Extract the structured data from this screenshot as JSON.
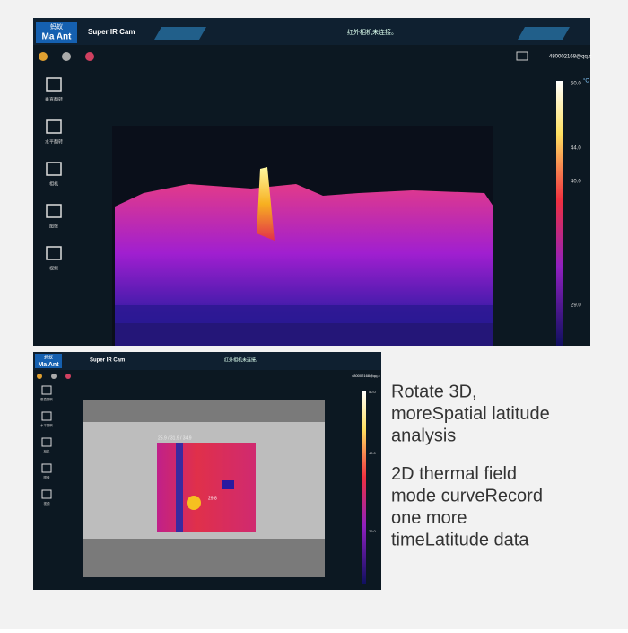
{
  "top_screen": {
    "logo": {
      "cn": "蚂蚁",
      "en": "Ma Ant"
    },
    "app_title": "Super IR Cam",
    "status": "红外相机未连接。",
    "account": "480002168@qq.c",
    "sidebar": [
      "垂直翻转",
      "水平翻转",
      "相机",
      "图像",
      "视频"
    ],
    "scale": {
      "unit": "°C",
      "labels": [
        "50.0",
        "44.0",
        "40.0",
        "29.0"
      ]
    }
  },
  "bottom_screen": {
    "logo": {
      "cn": "蚂蚁",
      "en": "Ma Ant"
    },
    "app_title": "Super IR Cam",
    "status": "红外相机未连接。",
    "account": "480002168@qq.c",
    "sidebar": [
      "垂直翻转",
      "水平翻转",
      "相机",
      "图像",
      "视频"
    ],
    "roi_label": "25.9 / 31.9 / 34.9",
    "spot_label": "29.8",
    "scale": {
      "labels": [
        "50.0",
        "40.0",
        "29.0"
      ]
    }
  },
  "caption": {
    "feature_1": [
      "Rotate 3D,",
      "moreSpatial latitude",
      "analysis"
    ],
    "feature_2": [
      "2D thermal field",
      "mode curveRecord",
      "one more",
      "timeLatitude data"
    ]
  }
}
